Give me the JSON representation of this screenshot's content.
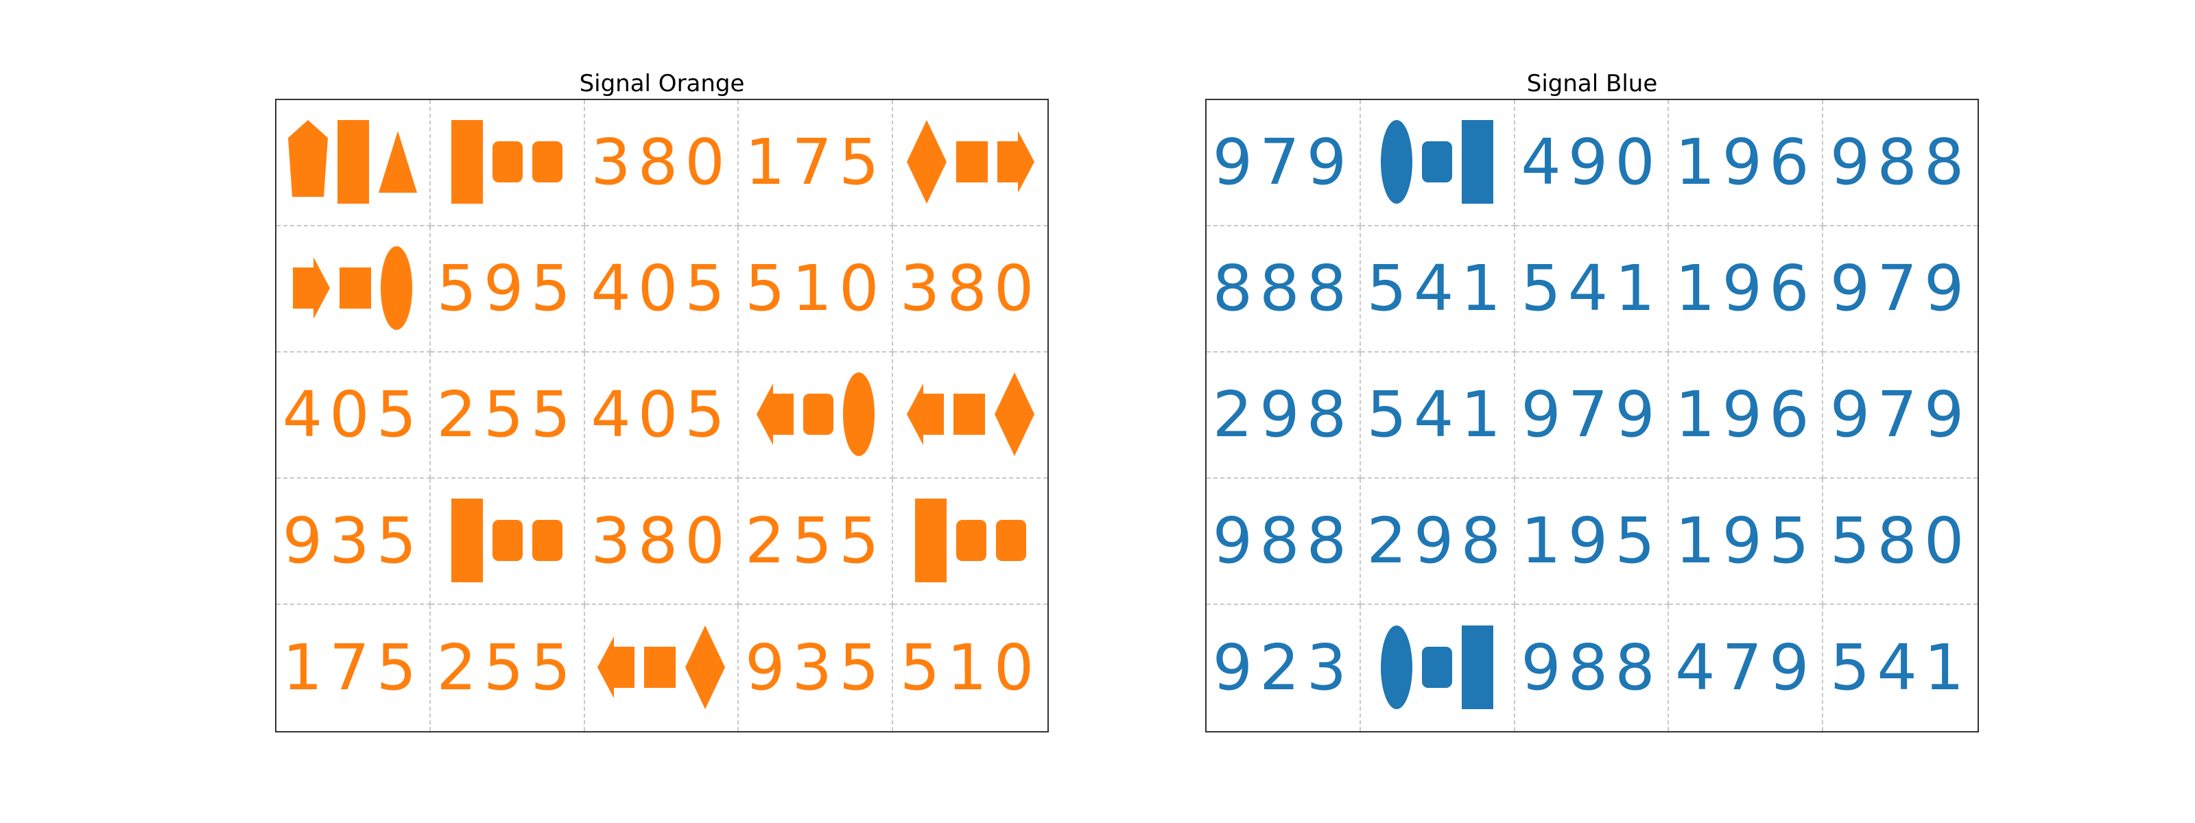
{
  "panels": [
    {
      "title": "Signal Orange",
      "color": "#ff7f0e",
      "cells": [
        {
          "kind": "shapes",
          "shapes": [
            "pentagon",
            "tall-rect",
            "triangle"
          ]
        },
        {
          "kind": "shapes",
          "shapes": [
            "tall-rect",
            "rounded-square",
            "rounded-square"
          ]
        },
        {
          "kind": "number",
          "value": "380"
        },
        {
          "kind": "number",
          "value": "175"
        },
        {
          "kind": "shapes",
          "shapes": [
            "diamond",
            "square",
            "arrow-right"
          ]
        },
        {
          "kind": "shapes",
          "shapes": [
            "arrow-right",
            "square",
            "ellipse"
          ]
        },
        {
          "kind": "number",
          "value": "595"
        },
        {
          "kind": "number",
          "value": "405"
        },
        {
          "kind": "number",
          "value": "510"
        },
        {
          "kind": "number",
          "value": "380"
        },
        {
          "kind": "number",
          "value": "405"
        },
        {
          "kind": "number",
          "value": "255"
        },
        {
          "kind": "number",
          "value": "405"
        },
        {
          "kind": "shapes",
          "shapes": [
            "arrow-left",
            "rounded-square",
            "ellipse"
          ]
        },
        {
          "kind": "shapes",
          "shapes": [
            "arrow-left",
            "square",
            "diamond"
          ]
        },
        {
          "kind": "number",
          "value": "935"
        },
        {
          "kind": "shapes",
          "shapes": [
            "tall-rect",
            "rounded-square",
            "rounded-square"
          ]
        },
        {
          "kind": "number",
          "value": "380"
        },
        {
          "kind": "number",
          "value": "255"
        },
        {
          "kind": "shapes",
          "shapes": [
            "tall-rect",
            "rounded-square",
            "rounded-square"
          ]
        },
        {
          "kind": "number",
          "value": "175"
        },
        {
          "kind": "number",
          "value": "255"
        },
        {
          "kind": "shapes",
          "shapes": [
            "arrow-left",
            "square",
            "diamond"
          ]
        },
        {
          "kind": "number",
          "value": "935"
        },
        {
          "kind": "number",
          "value": "510"
        }
      ]
    },
    {
      "title": "Signal Blue",
      "color": "#1f77b4",
      "cells": [
        {
          "kind": "number",
          "value": "979"
        },
        {
          "kind": "shapes",
          "shapes": [
            "ellipse",
            "rounded-square",
            "tall-rect"
          ]
        },
        {
          "kind": "number",
          "value": "490"
        },
        {
          "kind": "number",
          "value": "196"
        },
        {
          "kind": "number",
          "value": "988"
        },
        {
          "kind": "number",
          "value": "888"
        },
        {
          "kind": "number",
          "value": "541"
        },
        {
          "kind": "number",
          "value": "541"
        },
        {
          "kind": "number",
          "value": "196"
        },
        {
          "kind": "number",
          "value": "979"
        },
        {
          "kind": "number",
          "value": "298"
        },
        {
          "kind": "number",
          "value": "541"
        },
        {
          "kind": "number",
          "value": "979"
        },
        {
          "kind": "number",
          "value": "196"
        },
        {
          "kind": "number",
          "value": "979"
        },
        {
          "kind": "number",
          "value": "988"
        },
        {
          "kind": "number",
          "value": "298"
        },
        {
          "kind": "number",
          "value": "195"
        },
        {
          "kind": "number",
          "value": "195"
        },
        {
          "kind": "number",
          "value": "580"
        },
        {
          "kind": "number",
          "value": "923"
        },
        {
          "kind": "shapes",
          "shapes": [
            "ellipse",
            "rounded-square",
            "tall-rect"
          ]
        },
        {
          "kind": "number",
          "value": "988"
        },
        {
          "kind": "number",
          "value": "479"
        },
        {
          "kind": "number",
          "value": "541"
        }
      ]
    }
  ]
}
